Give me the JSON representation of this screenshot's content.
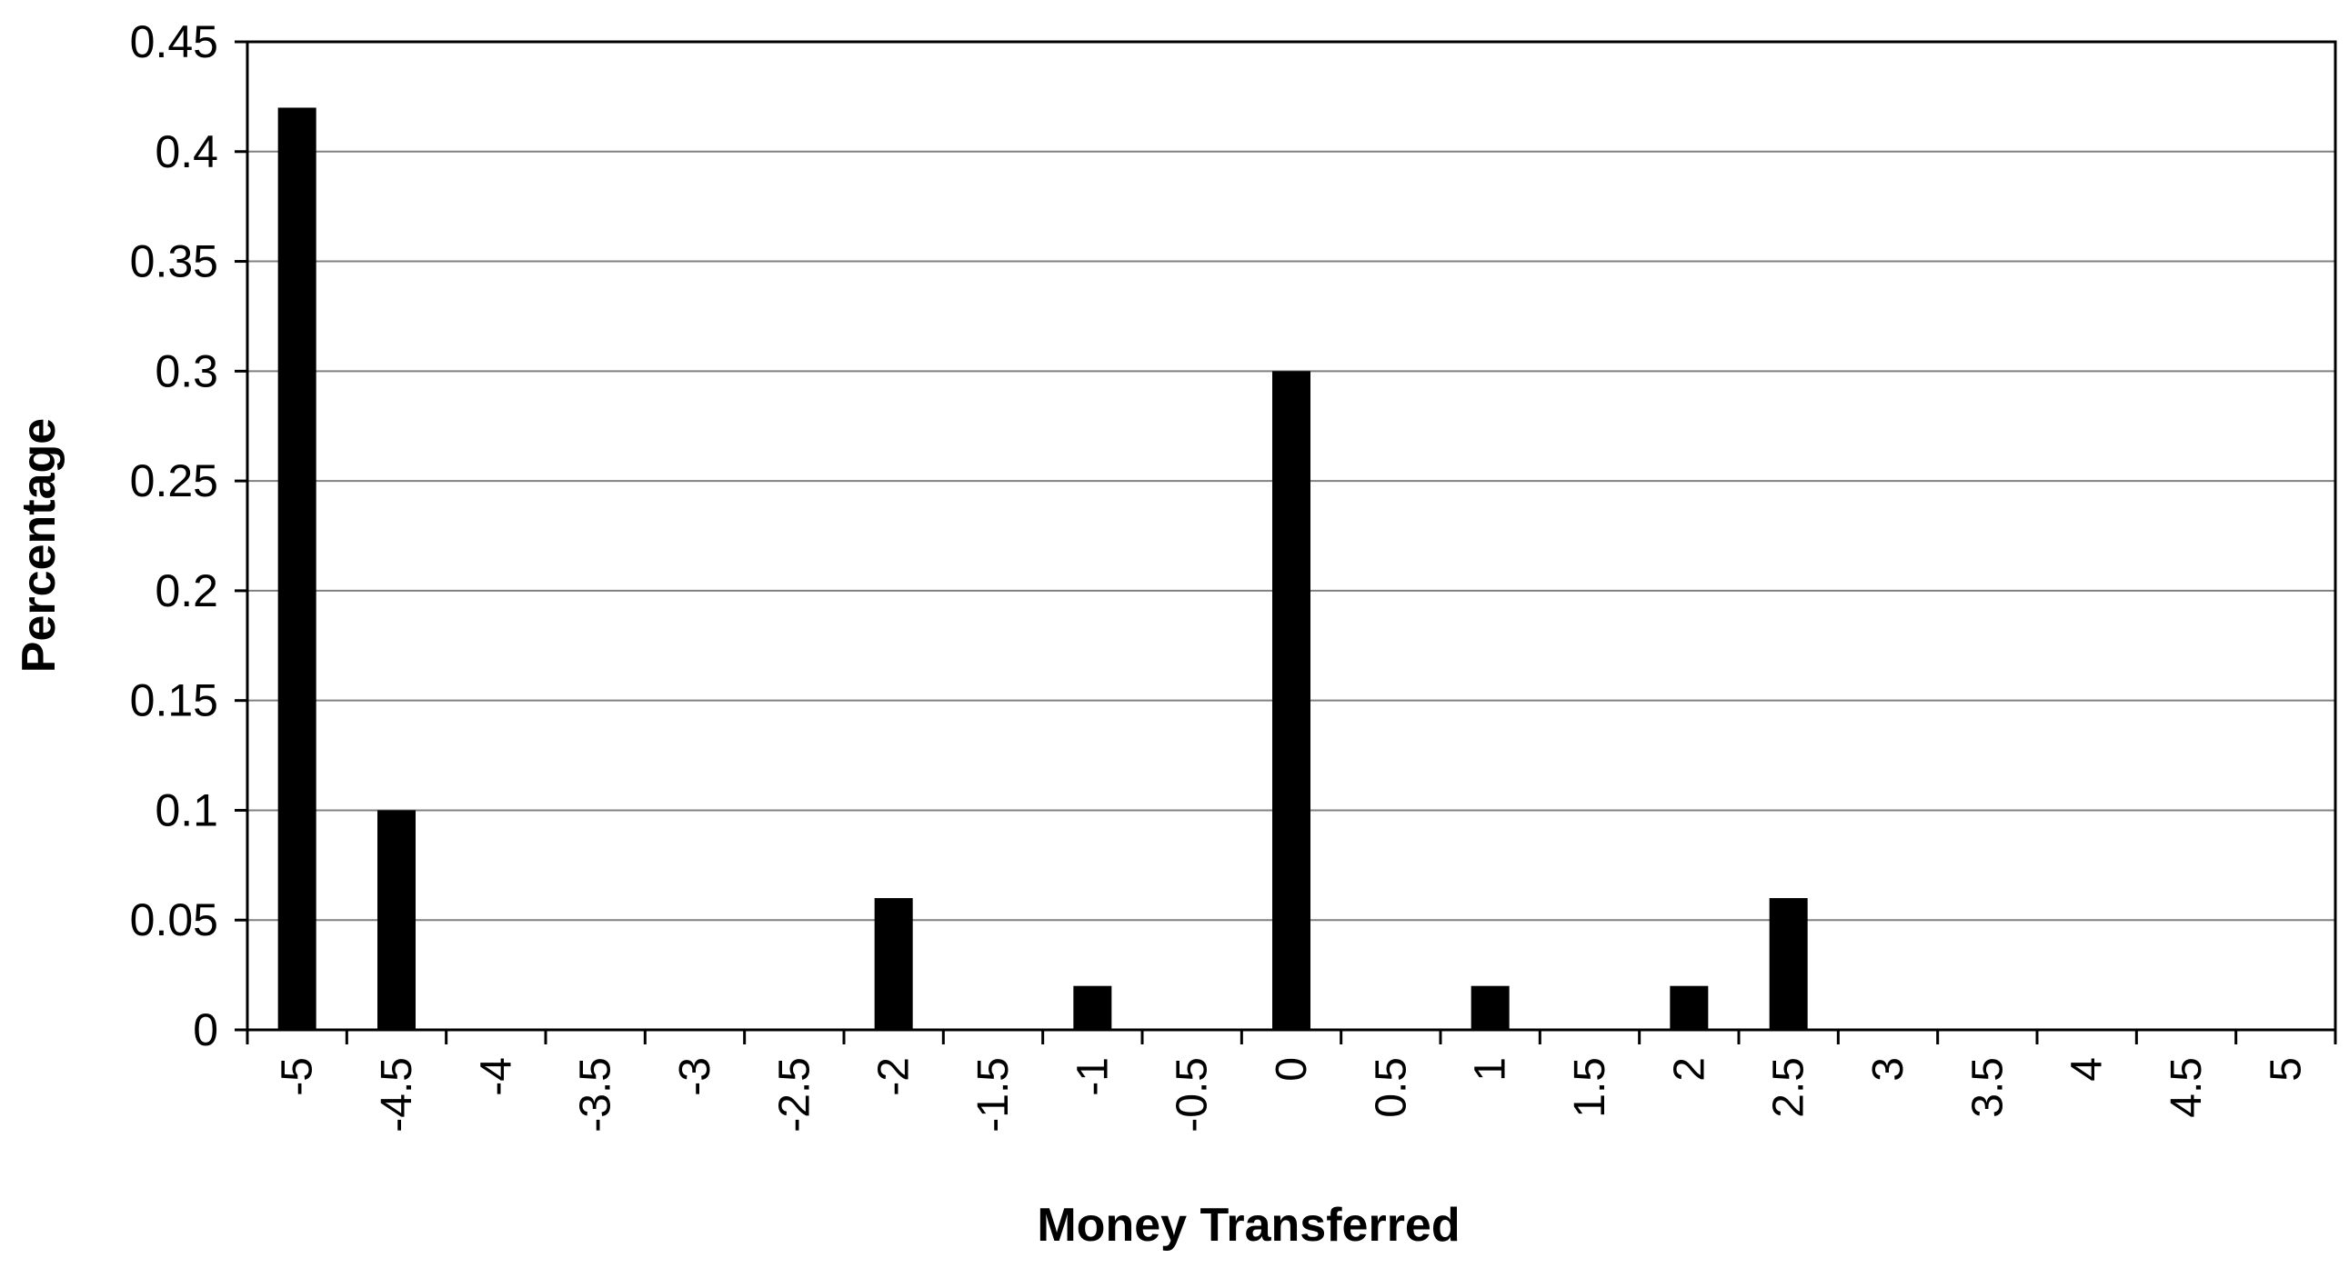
{
  "colors": {
    "bar": "#000000",
    "gridline": "#808080",
    "axis": "#000000",
    "background": "#ffffff"
  },
  "chart_data": {
    "type": "bar",
    "title": "",
    "xlabel": "Money Transferred",
    "ylabel": "Percentage",
    "categories": [
      "-5",
      "-4.5",
      "-4",
      "-3.5",
      "-3",
      "-2.5",
      "-2",
      "-1.5",
      "-1",
      "-0.5",
      "0",
      "0.5",
      "1",
      "1.5",
      "2",
      "2.5",
      "3",
      "3.5",
      "4",
      "4.5",
      "5"
    ],
    "values": [
      0.42,
      0.1,
      0,
      0,
      0,
      0,
      0.06,
      0,
      0.02,
      0,
      0.3,
      0,
      0.02,
      0,
      0.02,
      0.06,
      0,
      0,
      0,
      0,
      0
    ],
    "ylim": [
      0,
      0.45
    ],
    "y_ticks": [
      "0",
      "0.05",
      "0.1",
      "0.15",
      "0.2",
      "0.25",
      "0.3",
      "0.35",
      "0.4",
      "0.45"
    ],
    "grid": true,
    "legend": "none"
  }
}
